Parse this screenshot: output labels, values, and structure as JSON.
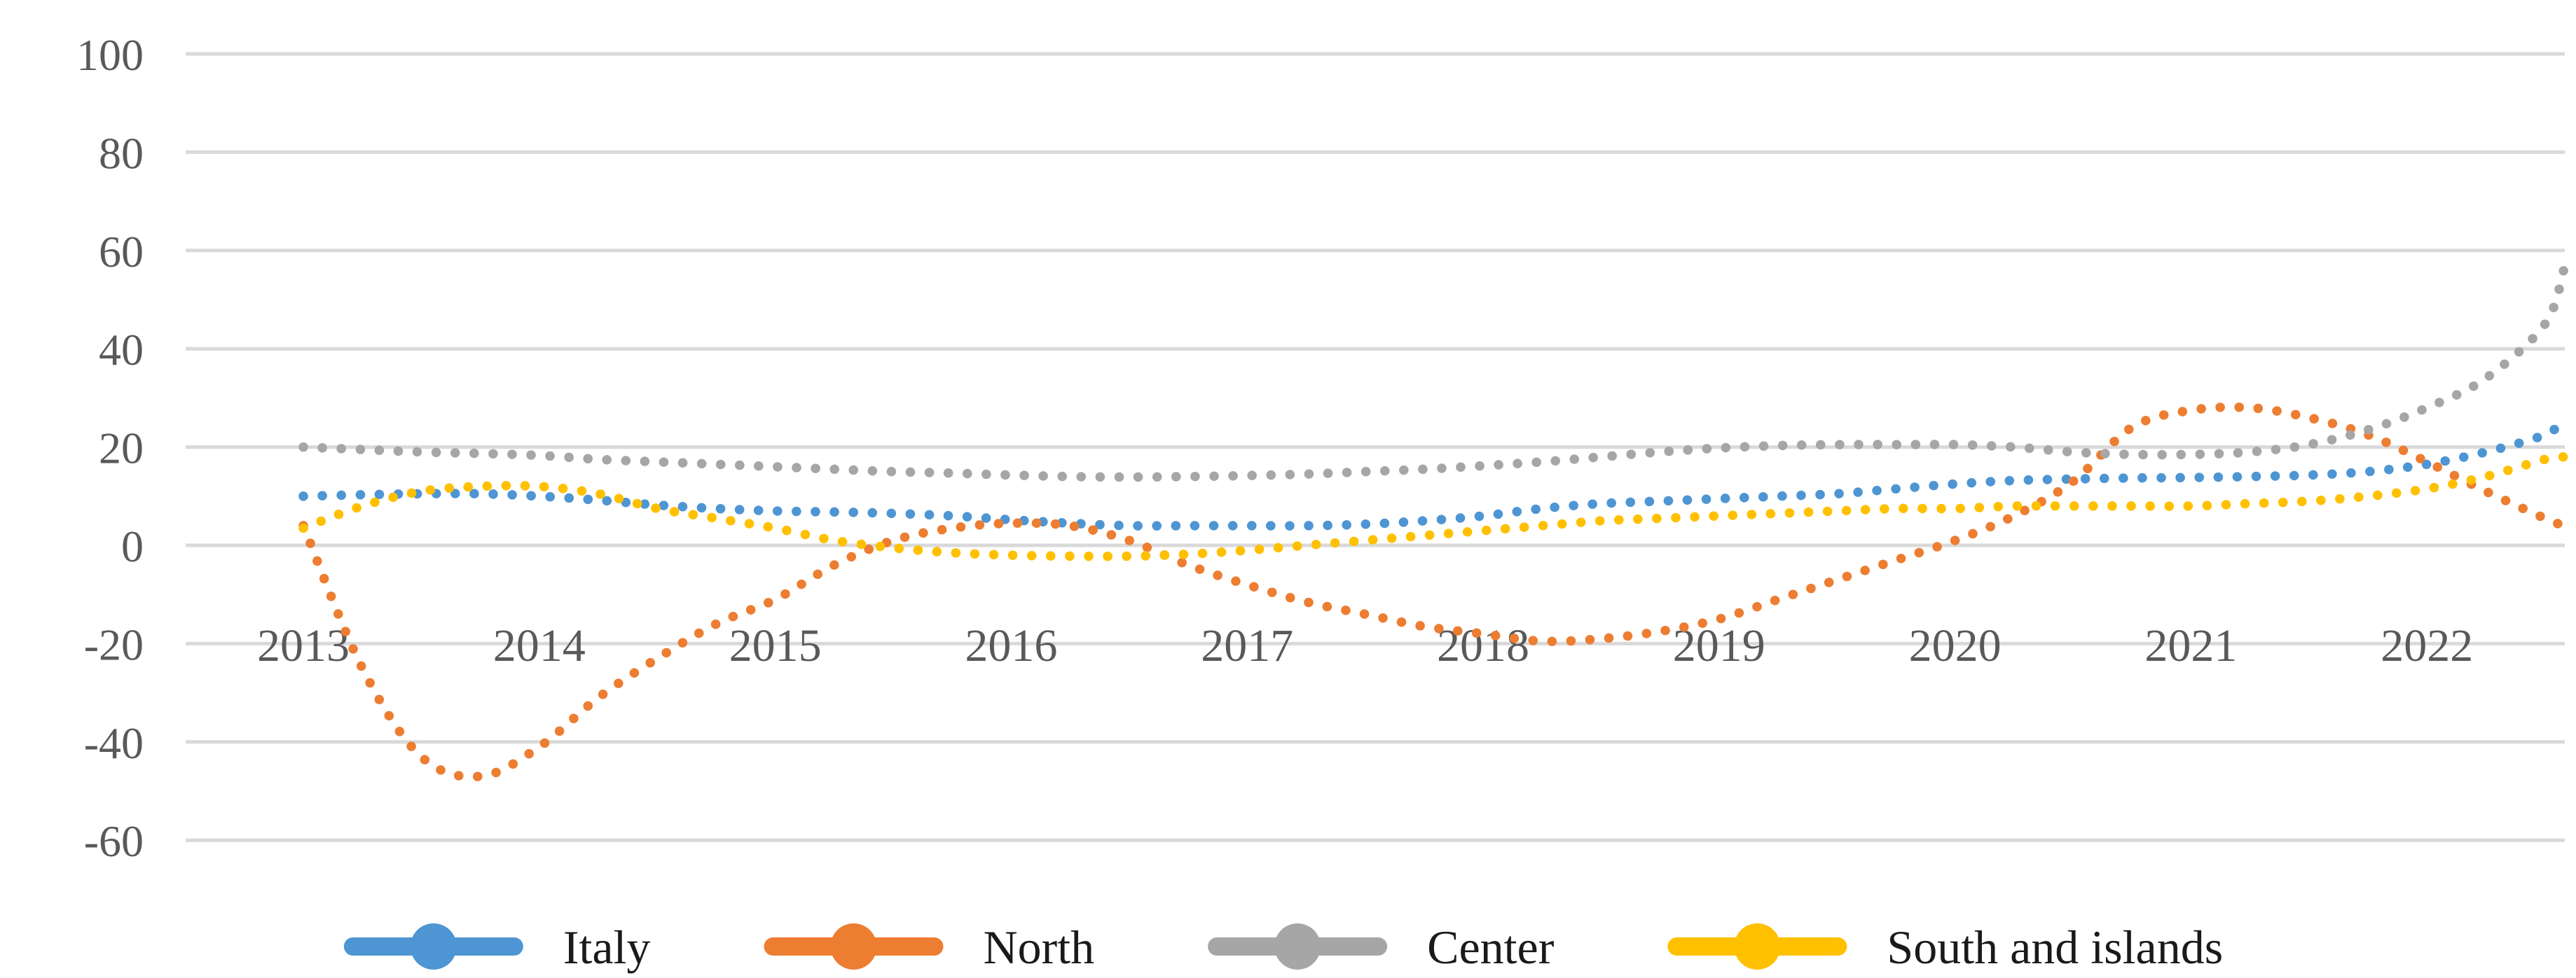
{
  "figure": {
    "background": "#ffffff",
    "gridline_color": "#d9d9d9",
    "tick_label_color": "#595959",
    "legend_text_color": "#1a1a1a"
  },
  "chart_data": {
    "type": "line",
    "title": "",
    "xlabel": "",
    "ylabel": "",
    "line_style": "dotted",
    "grid": true,
    "legend_position": "bottom",
    "ylim": [
      -60,
      100
    ],
    "y_tick_step": 20,
    "y_ticks": [
      100,
      80,
      60,
      40,
      20,
      0,
      -20,
      -40,
      -60
    ],
    "y_tick_labels": [
      "100",
      "80",
      "60",
      "40",
      "20",
      "0",
      "-20",
      "-40",
      "-60"
    ],
    "x_ticks": [
      2013,
      2014,
      2015,
      2016,
      2017,
      2018,
      2019,
      2020,
      2021,
      2022
    ],
    "x_tick_labels": [
      "2013",
      "2014",
      "2015",
      "2016",
      "2017",
      "2018",
      "2019",
      "2020",
      "2021",
      "2022"
    ],
    "x_range": [
      2013.0,
      2022.58
    ],
    "x_shared": [
      2013,
      2013.25,
      2013.5,
      2013.75,
      2014,
      2014.25,
      2014.5,
      2014.75,
      2015,
      2015.25,
      2015.5,
      2015.75,
      2016,
      2016.25,
      2016.5,
      2016.75,
      2017,
      2017.25,
      2017.5,
      2017.75,
      2018,
      2018.25,
      2018.5,
      2018.75,
      2019,
      2019.25,
      2019.5,
      2019.75,
      2020,
      2020.25,
      2020.5,
      2020.75,
      2021,
      2021.25,
      2021.5,
      2021.75,
      2022,
      2022.25,
      2022.5,
      2022.58
    ],
    "series": [
      {
        "name": "Italy",
        "color": "#4e95d3",
        "values": [
          10,
          10.3,
          10.5,
          10.5,
          10,
          9.2,
          8.2,
          7.5,
          7,
          6.8,
          6.5,
          6,
          5.2,
          4.5,
          4,
          4,
          4,
          4,
          4.3,
          5,
          6,
          7.5,
          8.5,
          9,
          9.5,
          10,
          10.5,
          11.5,
          12.5,
          13.2,
          13.5,
          13.7,
          13.8,
          14,
          14.3,
          15,
          16.5,
          19,
          22.5,
          25.5
        ]
      },
      {
        "name": "North",
        "color": "#ed7d31",
        "values": [
          4,
          -25,
          -43,
          -47,
          -41,
          -31,
          -23,
          -16,
          -11,
          -4,
          1,
          3.5,
          4.5,
          4,
          1,
          -4,
          -8,
          -11.5,
          -14,
          -16.5,
          -18,
          -19.5,
          -19,
          -17.5,
          -15,
          -11,
          -7,
          -3,
          1,
          6,
          13,
          24,
          27.5,
          28,
          26,
          22.5,
          17,
          11,
          5.5,
          4
        ]
      },
      {
        "name": "Center",
        "color": "#a6a6a6",
        "values": [
          20,
          19.5,
          19,
          18.7,
          18.3,
          17.5,
          17,
          16.5,
          16,
          15.5,
          15,
          14.7,
          14.3,
          14,
          13.9,
          14,
          14.2,
          14.5,
          15,
          15.5,
          16.2,
          17,
          18,
          19,
          19.8,
          20.3,
          20.5,
          20.5,
          20.5,
          20,
          19,
          18.5,
          18.5,
          19,
          20.5,
          23.5,
          28,
          34,
          45,
          56
        ]
      },
      {
        "name": "South and islands",
        "color": "#ffc000",
        "values": [
          3.5,
          8,
          11,
          12,
          12,
          10.5,
          7.5,
          5.5,
          3.5,
          1,
          -0.5,
          -1.5,
          -2,
          -2.2,
          -2.2,
          -1.8,
          -1,
          0,
          1,
          2,
          3,
          4,
          5,
          5.5,
          6,
          6.5,
          7,
          7.5,
          7.5,
          8,
          8,
          8,
          8,
          8.5,
          9,
          10,
          11.5,
          14,
          17.5,
          18
        ]
      }
    ]
  }
}
